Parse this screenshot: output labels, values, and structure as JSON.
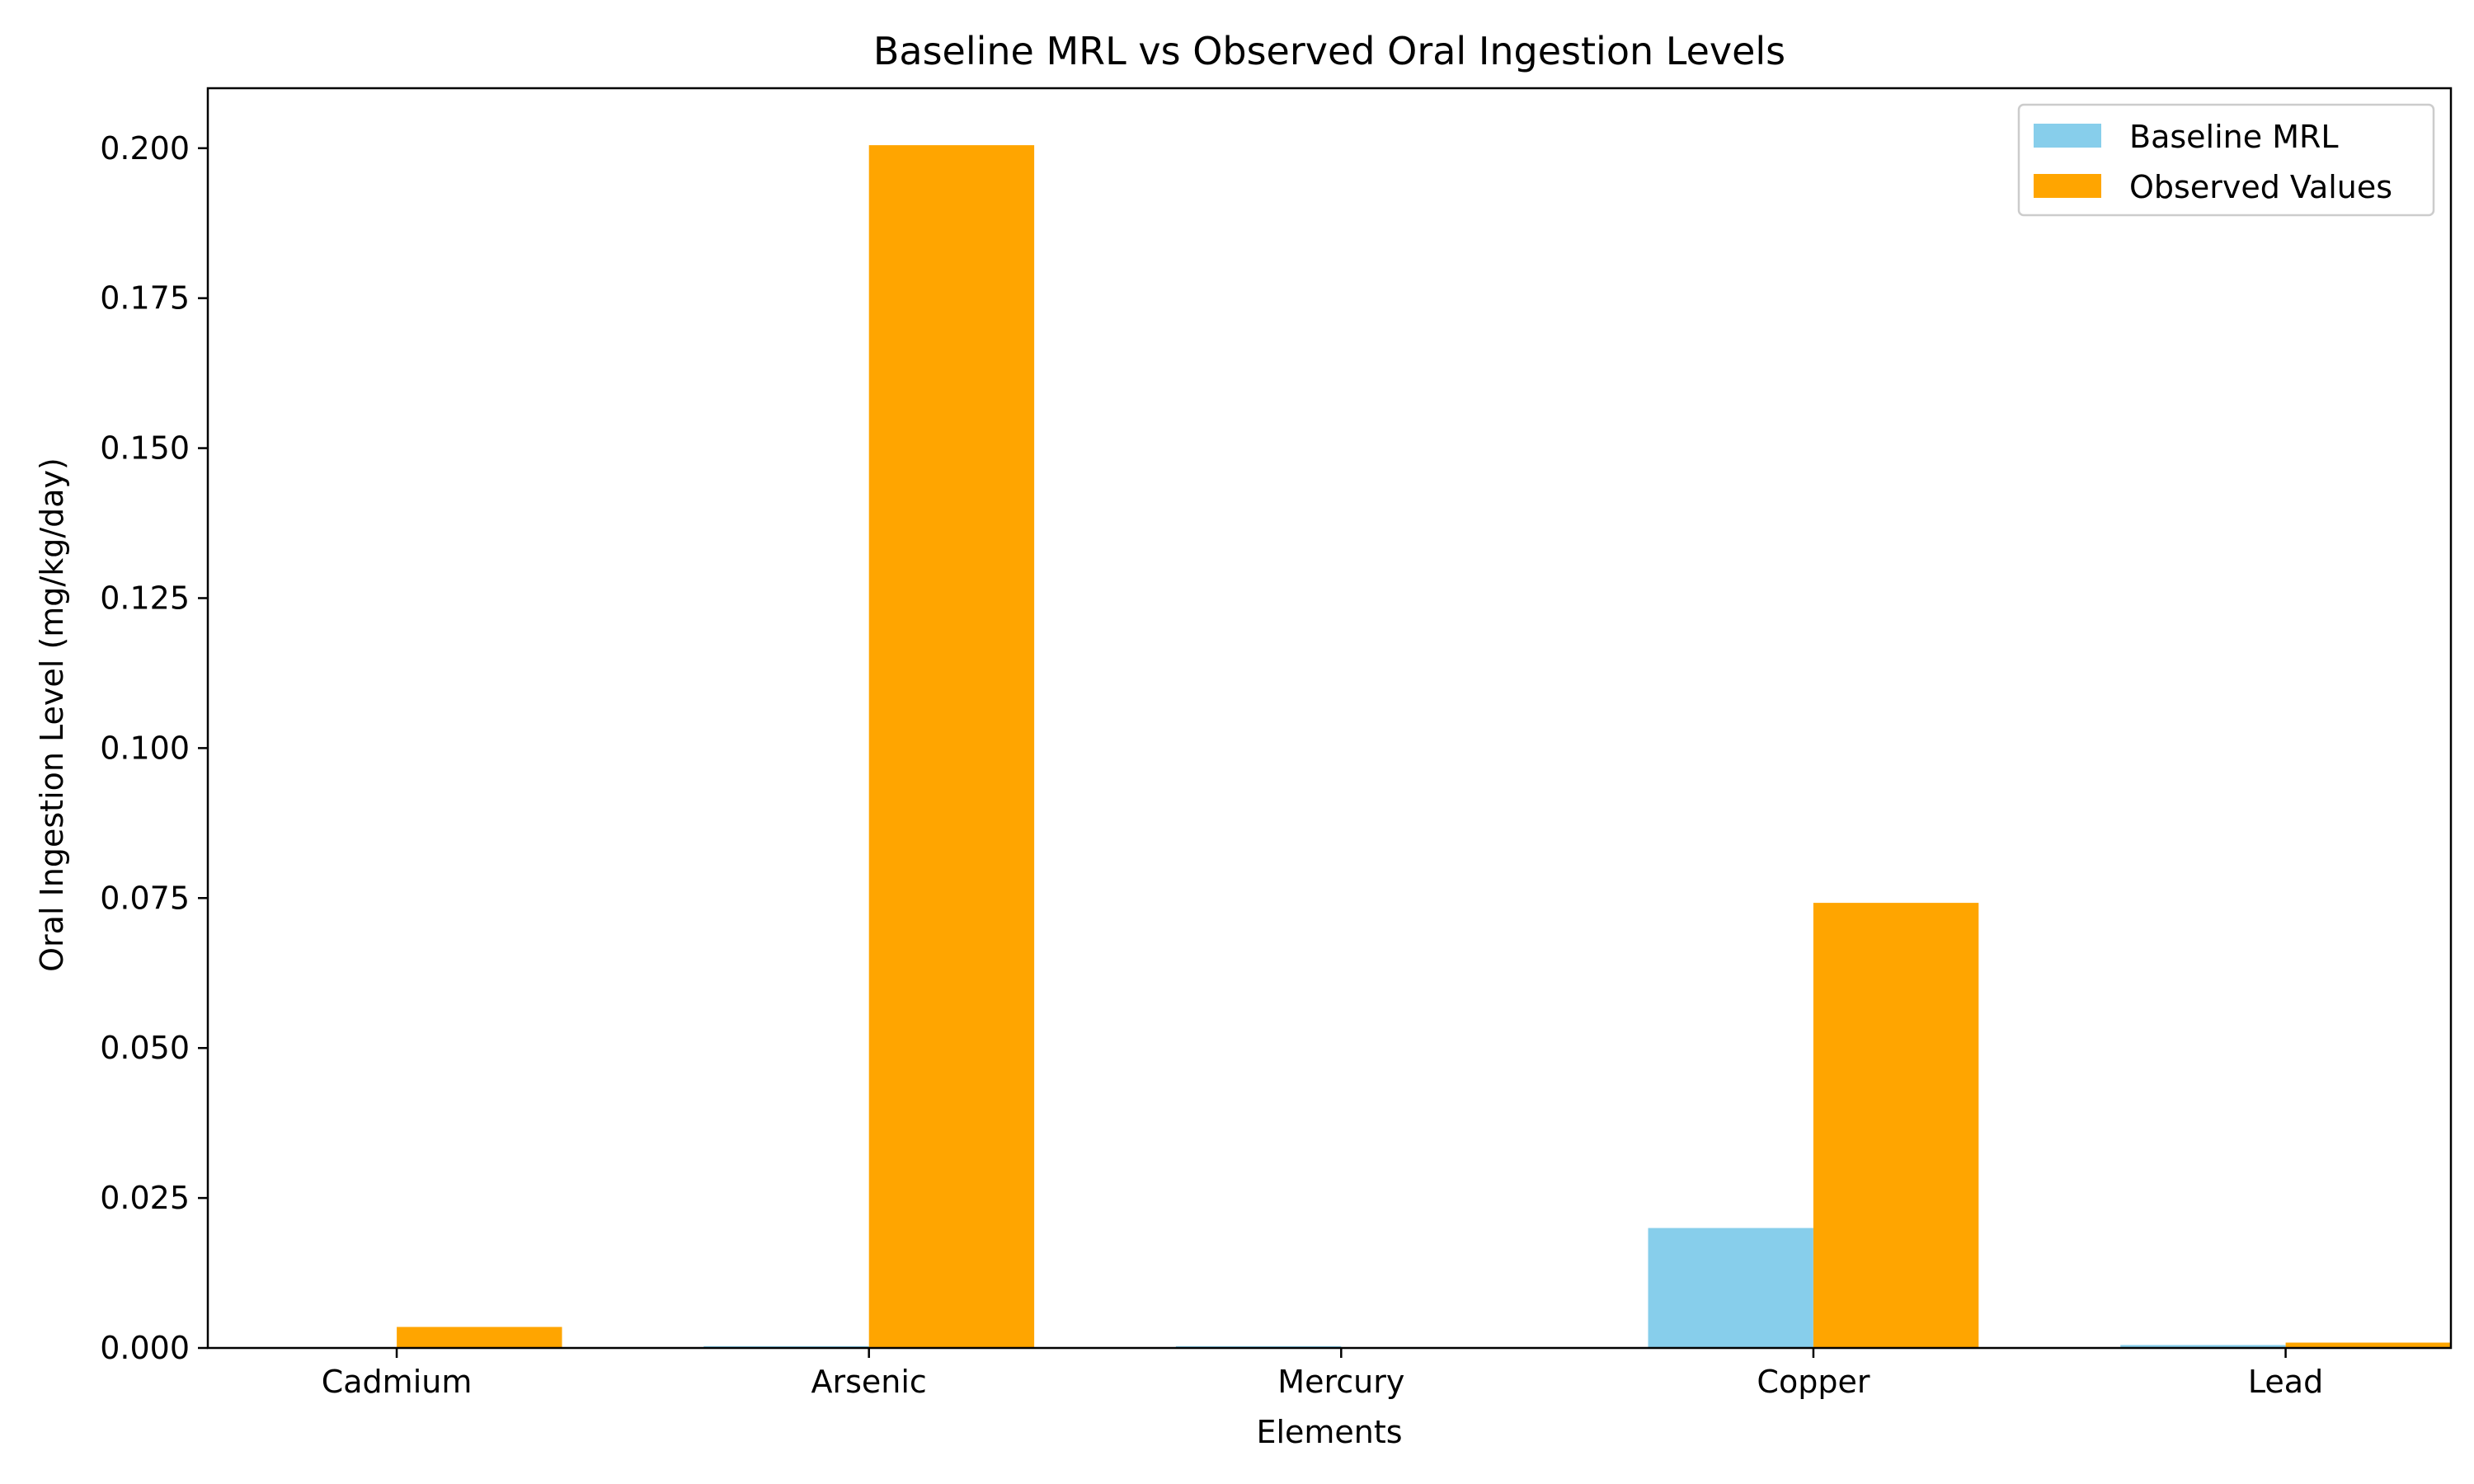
{
  "chart_data": {
    "type": "bar",
    "title": "Baseline MRL vs Observed Oral Ingestion Levels",
    "xlabel": "Elements",
    "ylabel": "Oral Ingestion Level (mg/kg/day)",
    "categories": [
      "Cadmium",
      "Arsenic",
      "Mercury",
      "Copper",
      "Lead"
    ],
    "series": [
      {
        "name": "Baseline MRL",
        "color": "#87CEEB",
        "values": [
          0.0001,
          0.0003,
          0.0003,
          0.02,
          0.0005
        ]
      },
      {
        "name": "Observed Values",
        "color": "#FFA500",
        "values": [
          0.0035,
          0.2005,
          0.0,
          0.0742,
          0.0009
        ]
      }
    ],
    "ylim": [
      0,
      0.21
    ],
    "yticks": [
      0.0,
      0.025,
      0.05,
      0.075,
      0.1,
      0.125,
      0.15,
      0.175,
      0.2
    ],
    "ytick_labels": [
      "0.000",
      "0.025",
      "0.050",
      "0.075",
      "0.100",
      "0.125",
      "0.150",
      "0.175",
      "0.200"
    ],
    "grid": false,
    "legend_position": "top-right"
  }
}
